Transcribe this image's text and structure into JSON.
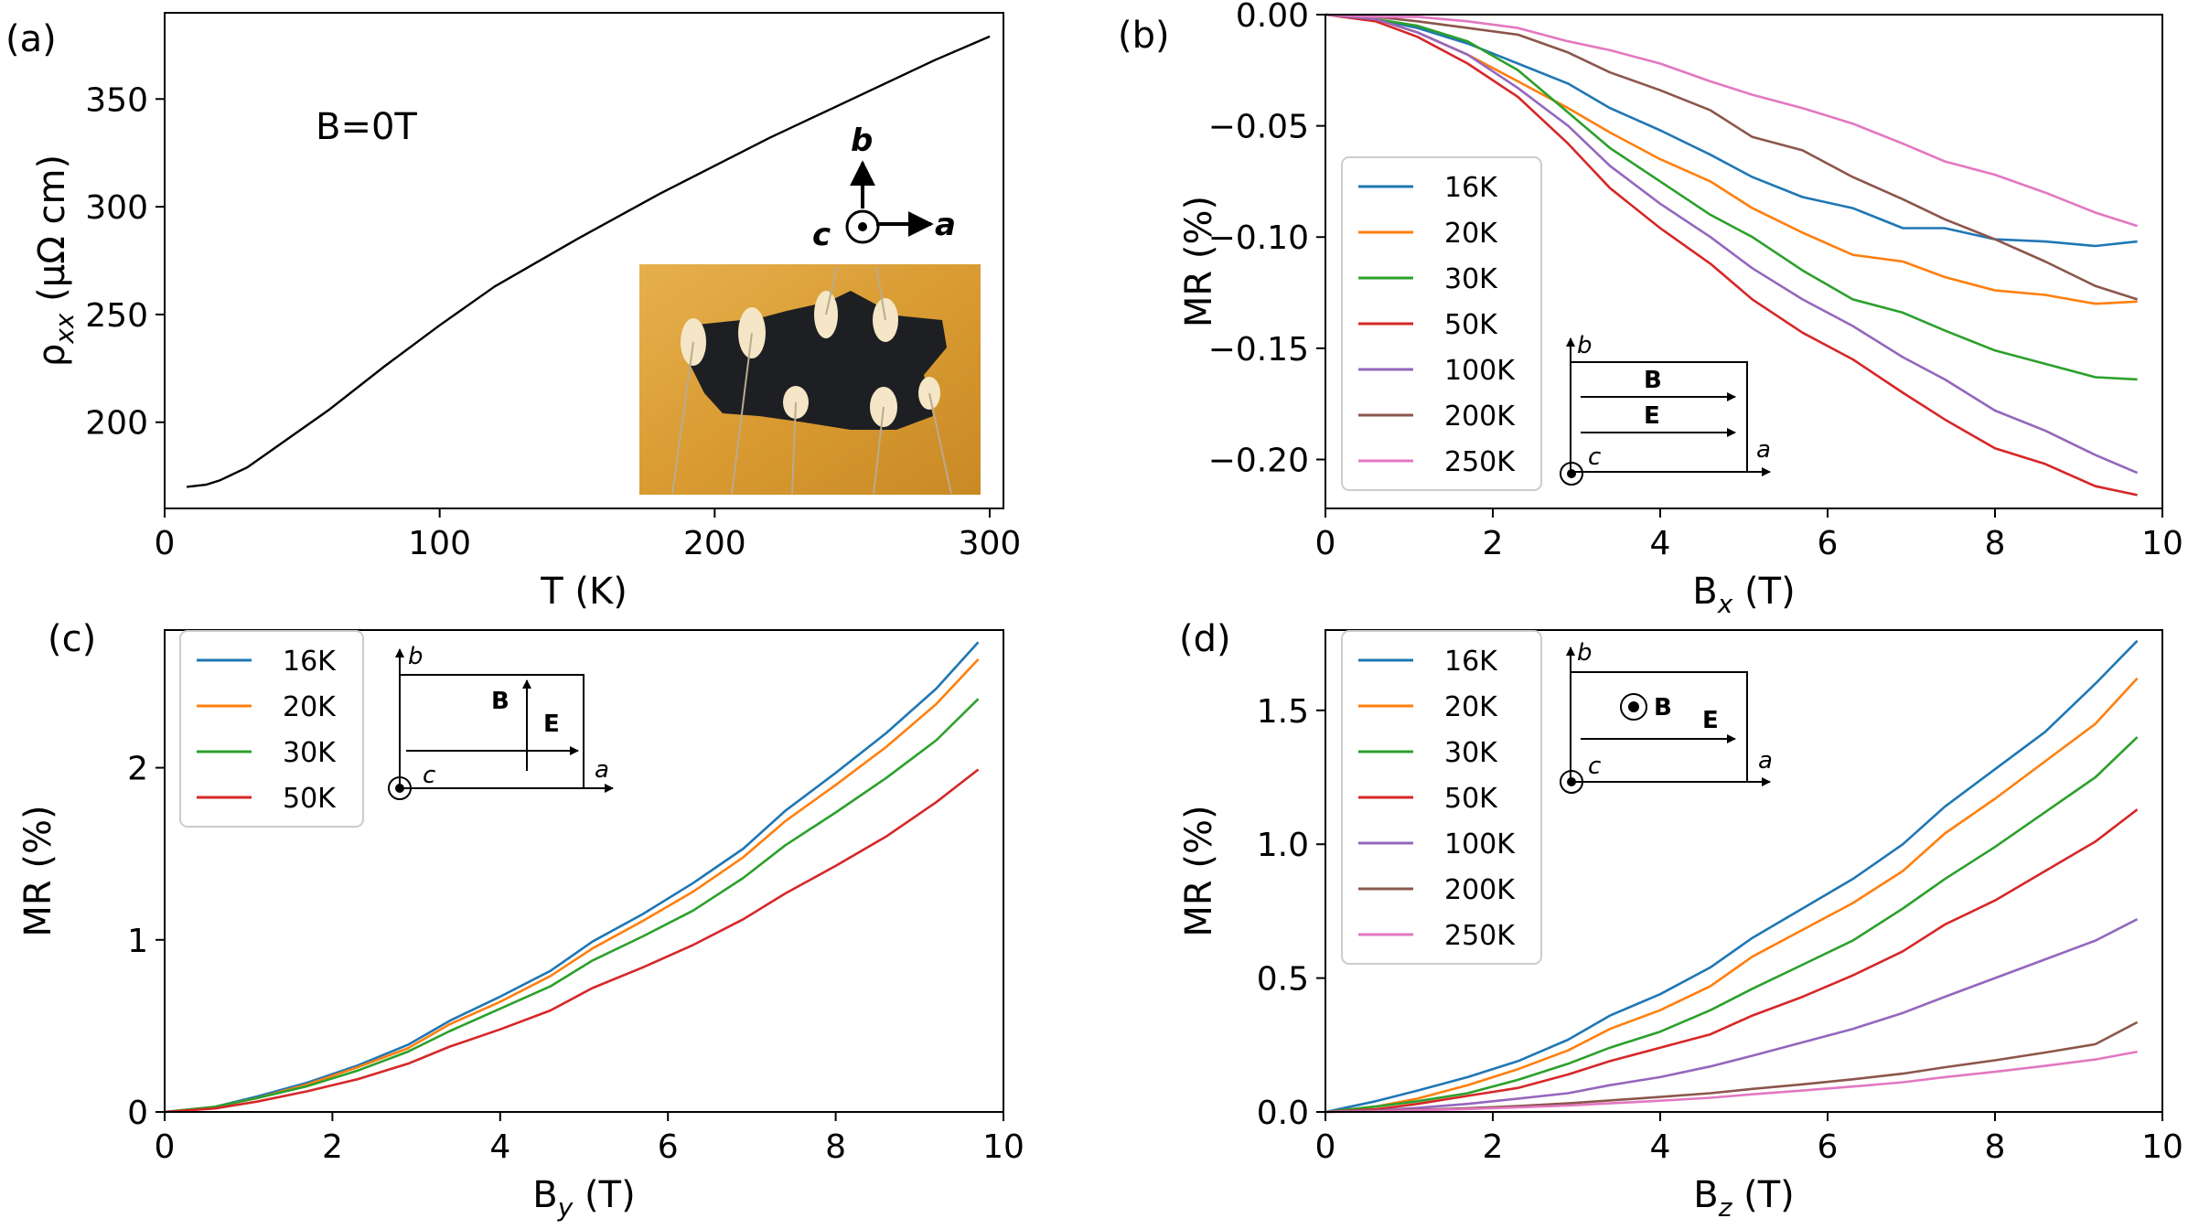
{
  "colors": {
    "16K": "#1f77b4",
    "20K": "#ff7f0e",
    "30K": "#2ca02c",
    "50K": "#d62728",
    "100K": "#9467bd",
    "200K": "#8c564b",
    "250K": "#e377c2",
    "black": "#000000"
  },
  "chart_data": [
    {
      "panel": "(a)",
      "type": "line",
      "xlabel": "T (K)",
      "ylabel": "ρxx (μΩ cm)",
      "xlim": [
        0,
        305
      ],
      "ylim": [
        160,
        390
      ],
      "xticks": [
        "0",
        "100",
        "200",
        "300"
      ],
      "xtick_values": [
        0,
        100,
        200,
        300
      ],
      "yticks": [
        "200",
        "250",
        "300",
        "350"
      ],
      "ytick_values": [
        200,
        250,
        300,
        350
      ],
      "annotation": "B=0T",
      "inset_axes_labels": {
        "a": "a",
        "b": "b",
        "c": "c"
      },
      "inset_photo": "sample-photo",
      "series": [
        {
          "color": "black",
          "x": [
            8,
            15,
            20,
            30,
            40,
            60,
            80,
            100,
            120,
            150,
            180,
            200,
            220,
            250,
            280,
            300
          ],
          "y": [
            170,
            171,
            173,
            179,
            188,
            206,
            226,
            245,
            263,
            285,
            306,
            319,
            332,
            350,
            368,
            379
          ]
        }
      ]
    },
    {
      "panel": "(b)",
      "type": "line",
      "xlabel": "Bx (T)",
      "xlabel_main": "B",
      "xlabel_sub": "x",
      "xlabel_unit": " (T)",
      "ylabel": "MR (%)",
      "xlim": [
        0,
        10
      ],
      "ylim": [
        -0.222,
        0
      ],
      "xticks": [
        "0",
        "2",
        "4",
        "6",
        "8",
        "10"
      ],
      "xtick_values": [
        0,
        2,
        4,
        6,
        8,
        10
      ],
      "yticks": [
        "0.00",
        "−0.05",
        "−0.10",
        "−0.15",
        "−0.20"
      ],
      "ytick_values": [
        0,
        -0.05,
        -0.1,
        -0.15,
        -0.2
      ],
      "legend": [
        "16K",
        "20K",
        "30K",
        "50K",
        "100K",
        "200K",
        "250K"
      ],
      "legend_position": "center-left",
      "inset_labels": {
        "b": "b",
        "a": "a",
        "c": "c",
        "B": "B",
        "E": "E"
      },
      "series": [
        {
          "name": "16K",
          "x": [
            0,
            0.6,
            1.1,
            1.7,
            2.3,
            2.9,
            3.4,
            4.0,
            4.6,
            5.1,
            5.7,
            6.3,
            6.9,
            7.4,
            8.0,
            8.6,
            9.2,
            9.7
          ],
          "y": [
            0,
            -0.002,
            -0.006,
            -0.013,
            -0.022,
            -0.031,
            -0.042,
            -0.052,
            -0.063,
            -0.073,
            -0.082,
            -0.087,
            -0.096,
            -0.096,
            -0.101,
            -0.102,
            -0.104,
            -0.102
          ]
        },
        {
          "name": "20K",
          "x": [
            0,
            0.6,
            1.1,
            1.7,
            2.3,
            2.9,
            3.4,
            4.0,
            4.6,
            5.1,
            5.7,
            6.3,
            6.9,
            7.4,
            8.0,
            8.6,
            9.2,
            9.7
          ],
          "y": [
            0,
            -0.002,
            -0.008,
            -0.018,
            -0.03,
            -0.042,
            -0.053,
            -0.065,
            -0.075,
            -0.087,
            -0.098,
            -0.108,
            -0.111,
            -0.118,
            -0.124,
            -0.126,
            -0.13,
            -0.129
          ]
        },
        {
          "name": "30K",
          "x": [
            0,
            0.6,
            1.1,
            1.7,
            2.3,
            2.9,
            3.4,
            4.0,
            4.6,
            5.1,
            5.7,
            6.3,
            6.9,
            7.4,
            8.0,
            8.6,
            9.2,
            9.7
          ],
          "y": [
            0,
            -0.002,
            -0.005,
            -0.012,
            -0.025,
            -0.044,
            -0.06,
            -0.075,
            -0.09,
            -0.1,
            -0.115,
            -0.128,
            -0.134,
            -0.142,
            -0.151,
            -0.157,
            -0.163,
            -0.164
          ]
        },
        {
          "name": "50K",
          "x": [
            0,
            0.6,
            1.1,
            1.7,
            2.3,
            2.9,
            3.4,
            4.0,
            4.6,
            5.1,
            5.7,
            6.3,
            6.9,
            7.4,
            8.0,
            8.6,
            9.2,
            9.7
          ],
          "y": [
            0,
            -0.003,
            -0.01,
            -0.022,
            -0.037,
            -0.058,
            -0.078,
            -0.096,
            -0.112,
            -0.128,
            -0.143,
            -0.155,
            -0.17,
            -0.182,
            -0.195,
            -0.202,
            -0.212,
            -0.216
          ]
        },
        {
          "name": "100K",
          "x": [
            0,
            0.6,
            1.1,
            1.7,
            2.3,
            2.9,
            3.4,
            4.0,
            4.6,
            5.1,
            5.7,
            6.3,
            6.9,
            7.4,
            8.0,
            8.6,
            9.2,
            9.7
          ],
          "y": [
            0,
            -0.002,
            -0.008,
            -0.018,
            -0.033,
            -0.05,
            -0.068,
            -0.085,
            -0.1,
            -0.114,
            -0.128,
            -0.14,
            -0.154,
            -0.164,
            -0.178,
            -0.187,
            -0.198,
            -0.206
          ]
        },
        {
          "name": "200K",
          "x": [
            0,
            0.6,
            1.1,
            1.7,
            2.3,
            2.9,
            3.4,
            4.0,
            4.6,
            5.1,
            5.7,
            6.3,
            6.9,
            7.4,
            8.0,
            8.6,
            9.2,
            9.7
          ],
          "y": [
            0,
            -0.001,
            -0.003,
            -0.006,
            -0.009,
            -0.017,
            -0.026,
            -0.034,
            -0.043,
            -0.055,
            -0.061,
            -0.073,
            -0.083,
            -0.092,
            -0.101,
            -0.111,
            -0.122,
            -0.128
          ]
        },
        {
          "name": "250K",
          "x": [
            0,
            0.6,
            1.1,
            1.7,
            2.3,
            2.9,
            3.4,
            4.0,
            4.6,
            5.1,
            5.7,
            6.3,
            6.9,
            7.4,
            8.0,
            8.6,
            9.2,
            9.7
          ],
          "y": [
            0,
            -0.001,
            -0.001,
            -0.003,
            -0.006,
            -0.012,
            -0.016,
            -0.022,
            -0.03,
            -0.036,
            -0.042,
            -0.049,
            -0.058,
            -0.066,
            -0.072,
            -0.08,
            -0.089,
            -0.095
          ]
        }
      ]
    },
    {
      "panel": "(c)",
      "type": "line",
      "xlabel": "By (T)",
      "xlabel_main": "B",
      "xlabel_sub": "y",
      "xlabel_unit": " (T)",
      "ylabel": "MR (%)",
      "xlim": [
        0,
        10
      ],
      "ylim": [
        0,
        2.8
      ],
      "xticks": [
        "0",
        "2",
        "4",
        "6",
        "8",
        "10"
      ],
      "xtick_values": [
        0,
        2,
        4,
        6,
        8,
        10
      ],
      "yticks": [
        "0",
        "1",
        "2"
      ],
      "ytick_values": [
        0,
        1,
        2
      ],
      "legend": [
        "16K",
        "20K",
        "30K",
        "50K"
      ],
      "legend_position": "upper-left",
      "inset_labels": {
        "b": "b",
        "a": "a",
        "c": "c",
        "B": "B",
        "E": "E"
      },
      "series": [
        {
          "name": "16K",
          "x": [
            0,
            0.6,
            1.1,
            1.7,
            2.3,
            2.9,
            3.4,
            4.0,
            4.6,
            5.1,
            5.7,
            6.3,
            6.9,
            7.4,
            8.0,
            8.6,
            9.2,
            9.7
          ],
          "y": [
            0,
            0.03,
            0.09,
            0.17,
            0.27,
            0.39,
            0.53,
            0.67,
            0.82,
            0.99,
            1.15,
            1.33,
            1.53,
            1.75,
            1.97,
            2.2,
            2.46,
            2.73
          ]
        },
        {
          "name": "20K",
          "x": [
            0,
            0.6,
            1.1,
            1.7,
            2.3,
            2.9,
            3.4,
            4.0,
            4.6,
            5.1,
            5.7,
            6.3,
            6.9,
            7.4,
            8.0,
            8.6,
            9.2,
            9.7
          ],
          "y": [
            0,
            0.03,
            0.08,
            0.16,
            0.26,
            0.37,
            0.51,
            0.64,
            0.79,
            0.95,
            1.11,
            1.28,
            1.48,
            1.69,
            1.9,
            2.12,
            2.37,
            2.63
          ]
        },
        {
          "name": "30K",
          "x": [
            0,
            0.6,
            1.1,
            1.7,
            2.3,
            2.9,
            3.4,
            4.0,
            4.6,
            5.1,
            5.7,
            6.3,
            6.9,
            7.4,
            8.0,
            8.6,
            9.2,
            9.7
          ],
          "y": [
            0,
            0.03,
            0.08,
            0.15,
            0.24,
            0.35,
            0.47,
            0.6,
            0.73,
            0.88,
            1.02,
            1.17,
            1.36,
            1.55,
            1.74,
            1.94,
            2.16,
            2.4
          ]
        },
        {
          "name": "50K",
          "x": [
            0,
            0.6,
            1.1,
            1.7,
            2.3,
            2.9,
            3.4,
            4.0,
            4.6,
            5.1,
            5.7,
            6.3,
            6.9,
            7.4,
            8.0,
            8.6,
            9.2,
            9.7
          ],
          "y": [
            0,
            0.02,
            0.06,
            0.12,
            0.19,
            0.28,
            0.38,
            0.48,
            0.59,
            0.72,
            0.84,
            0.97,
            1.12,
            1.27,
            1.43,
            1.6,
            1.8,
            1.99
          ]
        }
      ]
    },
    {
      "panel": "(d)",
      "type": "line",
      "xlabel": "Bz (T)",
      "xlabel_main": "B",
      "xlabel_sub": "z",
      "xlabel_unit": " (T)",
      "ylabel": "MR (%)",
      "xlim": [
        0,
        10
      ],
      "ylim": [
        0,
        1.8
      ],
      "xticks": [
        "0",
        "2",
        "4",
        "6",
        "8",
        "10"
      ],
      "xtick_values": [
        0,
        2,
        4,
        6,
        8,
        10
      ],
      "yticks": [
        "0.0",
        "0.5",
        "1.0",
        "1.5"
      ],
      "ytick_values": [
        0,
        0.5,
        1.0,
        1.5
      ],
      "legend": [
        "16K",
        "20K",
        "30K",
        "50K",
        "100K",
        "200K",
        "250K"
      ],
      "legend_position": "upper-left",
      "inset_labels": {
        "b": "b",
        "a": "a",
        "c": "c",
        "B": "B",
        "E": "E"
      },
      "series": [
        {
          "name": "16K",
          "x": [
            0,
            0.6,
            1.1,
            1.7,
            2.3,
            2.9,
            3.4,
            4.0,
            4.6,
            5.1,
            5.7,
            6.3,
            6.9,
            7.4,
            8.0,
            8.6,
            9.2,
            9.7
          ],
          "y": [
            0,
            0.04,
            0.08,
            0.13,
            0.19,
            0.27,
            0.36,
            0.44,
            0.54,
            0.65,
            0.76,
            0.87,
            1.0,
            1.14,
            1.28,
            1.42,
            1.6,
            1.76
          ]
        },
        {
          "name": "20K",
          "x": [
            0,
            0.6,
            1.1,
            1.7,
            2.3,
            2.9,
            3.4,
            4.0,
            4.6,
            5.1,
            5.7,
            6.3,
            6.9,
            7.4,
            8.0,
            8.6,
            9.2,
            9.7
          ],
          "y": [
            0,
            0.02,
            0.05,
            0.1,
            0.16,
            0.23,
            0.31,
            0.38,
            0.47,
            0.58,
            0.68,
            0.78,
            0.9,
            1.04,
            1.17,
            1.31,
            1.45,
            1.62
          ]
        },
        {
          "name": "30K",
          "x": [
            0,
            0.6,
            1.1,
            1.7,
            2.3,
            2.9,
            3.4,
            4.0,
            4.6,
            5.1,
            5.7,
            6.3,
            6.9,
            7.4,
            8.0,
            8.6,
            9.2,
            9.7
          ],
          "y": [
            0,
            0.02,
            0.04,
            0.07,
            0.12,
            0.18,
            0.24,
            0.3,
            0.38,
            0.46,
            0.55,
            0.64,
            0.76,
            0.87,
            0.99,
            1.12,
            1.25,
            1.4
          ]
        },
        {
          "name": "50K",
          "x": [
            0,
            0.6,
            1.1,
            1.7,
            2.3,
            2.9,
            3.4,
            4.0,
            4.6,
            5.1,
            5.7,
            6.3,
            6.9,
            7.4,
            8.0,
            8.6,
            9.2,
            9.7
          ],
          "y": [
            0,
            0.01,
            0.03,
            0.06,
            0.09,
            0.14,
            0.19,
            0.24,
            0.29,
            0.36,
            0.43,
            0.51,
            0.6,
            0.7,
            0.79,
            0.9,
            1.01,
            1.13
          ]
        },
        {
          "name": "100K",
          "x": [
            0,
            0.6,
            1.1,
            1.7,
            2.3,
            2.9,
            3.4,
            4.0,
            4.6,
            5.1,
            5.7,
            6.3,
            6.9,
            7.4,
            8.0,
            8.6,
            9.2,
            9.7
          ],
          "y": [
            0,
            0.005,
            0.015,
            0.03,
            0.05,
            0.07,
            0.1,
            0.13,
            0.17,
            0.21,
            0.26,
            0.31,
            0.37,
            0.43,
            0.5,
            0.57,
            0.64,
            0.72
          ]
        },
        {
          "name": "200K",
          "x": [
            0,
            0.6,
            1.1,
            1.7,
            2.3,
            2.9,
            3.4,
            4.0,
            4.6,
            5.1,
            5.7,
            6.3,
            6.9,
            7.4,
            8.0,
            8.6,
            9.2,
            9.7
          ],
          "y": [
            0,
            0.003,
            0.008,
            0.014,
            0.022,
            0.032,
            0.043,
            0.056,
            0.07,
            0.086,
            0.103,
            0.122,
            0.143,
            0.167,
            0.193,
            0.222,
            0.253,
            0.335
          ]
        },
        {
          "name": "250K",
          "x": [
            0,
            0.6,
            1.1,
            1.7,
            2.3,
            2.9,
            3.4,
            4.0,
            4.6,
            5.1,
            5.7,
            6.3,
            6.9,
            7.4,
            8.0,
            8.6,
            9.2,
            9.7
          ],
          "y": [
            0,
            0.002,
            0.006,
            0.011,
            0.017,
            0.024,
            0.032,
            0.042,
            0.053,
            0.066,
            0.08,
            0.095,
            0.111,
            0.13,
            0.15,
            0.172,
            0.196,
            0.225
          ]
        }
      ]
    }
  ]
}
